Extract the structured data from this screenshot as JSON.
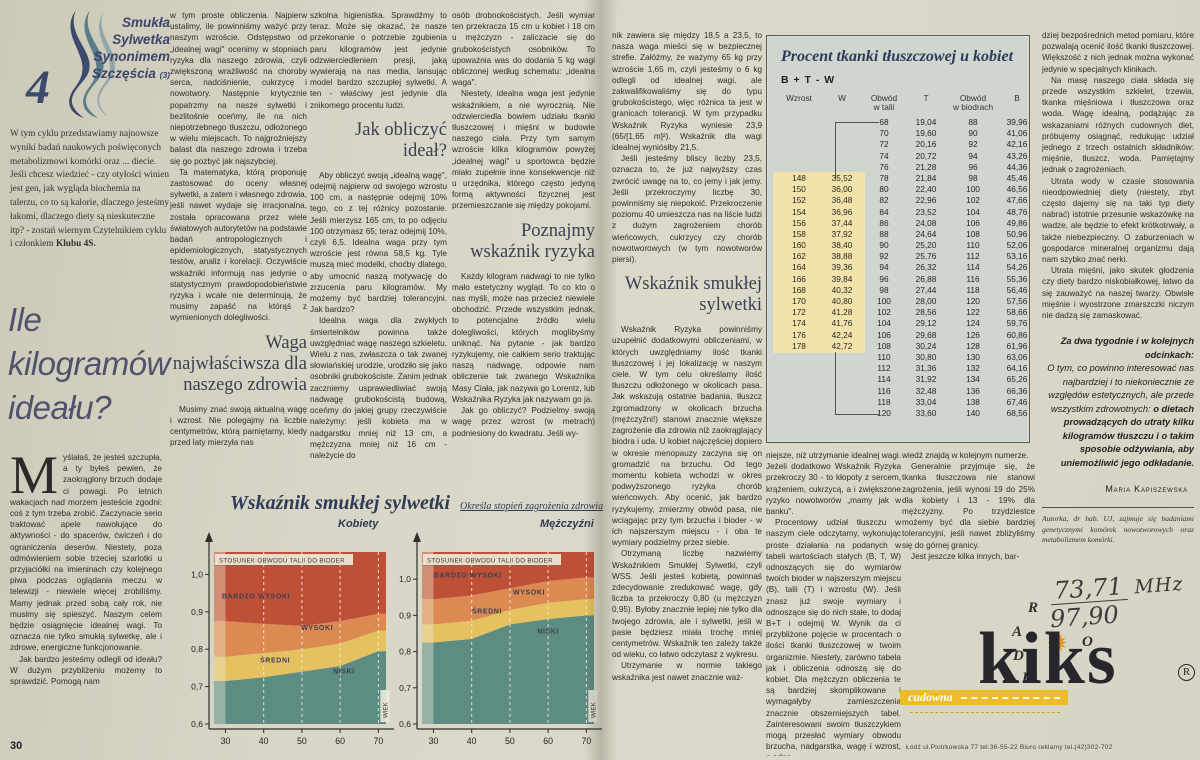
{
  "left_page": {
    "badge": {
      "number": "4",
      "lines": [
        "Smukła",
        "Sylwetka",
        "Synonimem",
        "Szczęścia"
      ],
      "part": "(3)"
    },
    "intro_text": "W tym cyklu przedstawiamy najnowsze wyniki badań naukowych poświęconych metabolizmowi komórki oraz ... diecie. Jeśli chcesz wiedzieć - czy otyłości winien jest gen, jak wygląda biochemia na talerzu, co to są kalorie, dlaczego jesteśmy łakomi, dlaczego diety są nieskuteczne itp? - zostań wiernym Czytelnikiem cyklu i członkiem ",
    "intro_bold": "Klubu 4S.",
    "title": "Ile kilogramów ideału?",
    "page_number": "30",
    "col1": {
      "dropcap": "M",
      "p1": "yślałaś, że jesteś szczupła, a ty byłeś pewien, że zaokrąglony brzuch dodaje ci powagi. Po letnich wakacjach nad morzem jesteście zgodni: coś z tym trzeba zrobić. Zaczynacie serio traktować apele nawołujące do aktywności - do spacerów, ćwiczeń i do ograniczenia deserów. Niestety, poza odmówieniem sobie trzeciej szarlotki u przyjaciółki na imieninach czy kolejnego piwa podczas oglądania meczu w telewizji - niewiele więcej zrobiliśmy. Mamy jednak przed sobą cały rok, nie musimy się spieszyć. Naszym celem będzie osiągnięcie idealnej wagi. To oznacza nie tylko smukłą sylwetkę, ale i zdrowe, energiczne funkcjonowanie.",
      "p2": "Jak bardzo jesteśmy odlegli od ideału? W dużym przybliżeniu możemy to sprawdzić. Pomogą nam"
    },
    "col2": {
      "p1": "w tym proste obliczenia. Najpierw ustalimy, ile powinniśmy ważyć przy naszym wzroście. Odstępstwo od „idealnej wagi\" ocenimy w stopniach ryzyka dla naszego zdrowia, czyli zwiększoną wrażliwość na choroby serca, nadciśnienie, cukrzycę i nowotwory. Następnie krytycznie popatrzmy na nasze sylwetki i bezlitośnie oceńmy, ile na nich niepotrzebnego tłuszczu, odłożonego w wielu miejscach. To najgroźniejszy balast dla naszego zdrowia i trzeba się go pozbyć jak najszybciej.",
      "p2": "Ta matematyka, którą proponuję zastosować do oceny własnej sylwetki, a zatem i własnego zdrowia, jeśli nawet wydaje się irracjonalna, została opracowana przez wiele światowych autorytetów na podstawie badań antropologicznych i epidemiologicznych, statystycznych testów, analiz i korelacji. Oczywiście wskaźniki informują nas jedynie o statystycznym prawdopodobieństwie ryzyka i wcale nie determinują, że musimy zapaść na którąś z wymienionych dolegliwości.",
      "subhead": "Waga najwłaściwsza dla naszego zdrowia",
      "p3": "Musimy znać swoją aktualną wagę i wzrost. Nie polegajmy na liczbie centymetrów, którą pamiętamy, kiedy przed laty mierzyła nas"
    },
    "col3": {
      "p1": "szkolna higienistka. Sprawdźmy to teraz. Może się okazać, że nasze przekonanie o potrzebie zgubienia paru kilogramów jest jedynie odzwierciedleniem presji, jaką wywierają na nas media, lansując model bardzo szczupłej sylwetki. A ten - właściwy jest jedynie dla znikomego procentu ludzi.",
      "subhead": "Jak obliczyć ideał?",
      "p2": "Aby obliczyć swoją „idealną wagę\", odejmij najpierw od swojego wzrostu 100 cm, a następnie odejmij 10% tego, co z tej różnicy pozostanie. Jeśli mierzysz 165 cm, to po odjęciu 100 otrzymasz 65; teraz odejmij 10%, czyli 6,5. Idealna waga przy tym wzroście jest równa 58,5 kg. Tyle muszą mieć modelki, choćby dlatego, aby umocnić naszą motywację do zrzucenia paru kilogramów. My możemy być bardziej tolerancyjni. Jak bardzo?",
      "p3": "Idealna waga dla zwykłych śmiertelników powinna także uwzględniać wagę naszego szkieletu. Wielu z nas, zwłaszcza o tak zwanej słowiańskiej urodzie, urodziło się jako osobniki grubokościste. Zanim jednak zaczniemy usprawiedliwiać swoją nadwagę grubokościstą budową, oceńmy do jakiej grupy rzeczywiście należymy: jeśli kobieta ma w nadgarstku mniej niż 13 cm, a mężczyzna mniej niż 16 cm - należycie do"
    },
    "col4": {
      "p1": "osób drobnokościstych. Jeśli wymiar ten przekracza 15 cm u kobiet i 18 cm u mężczyzn - zaliczacie się do grubokościstych osobników. To upoważnia was do dodania 5 kg wagi obliczonej według schematu: „idealna waga\".",
      "p2": "Niestety, idealna waga jest jedynie wskaźnikiem, a nie wyrocznią. Nie odzwierciedla bowiem udziału tkanki tłuszczowej i mięśni w budowie naszego ciała. Przy tym samym wzroście kilka kilogramów powyżej „idealnej wagi\" u sportowca będzie miało zupełnie inne konsekwencje niż u urzędnika, którego często jedyną formą aktywności fizycznej jest przemieszczanie się między pokojami.",
      "subhead": "Poznajmy wskaźnik ryzyka",
      "p3": "Każdy kilogram nadwagi to nie tylko mało estetyczny wygląd. To co kto o nas myśli, może nas przecież niewiele obchodzić. Przede wszystkim jednak, to potencjalne źródło wielu dolegliwości, których moglibyśmy uniknąć. Na pytanie - jak bardzo ryzykujemy, nie całkiem serio traktując naszą nadwagę, odpowie nam obliczenie tak zwanego Wskaźnika Masy Ciała, jak nazywa go Lorentz, lub Wskaźnika Ryzyka jak nazywam go ja.",
      "p4": "Jak go obliczyć? Podzielmy swoją wagę przez wzrost (w metrach) podniesiony do kwadratu. Jeśli wy-"
    }
  },
  "chart_data": {
    "type": "area",
    "title": "Wskaźnik smukłej sylwetki",
    "subtitle": "Określa stopień zagrożenia zdrowia",
    "inner_label": "STOSUNEK OBWODU TALII DO BIODER",
    "xlabel": "WIEK",
    "x": [
      30,
      40,
      50,
      60,
      70
    ],
    "xticks": [
      "30",
      "40",
      "50",
      "60",
      "70"
    ],
    "yticks": [
      1.0,
      0.9,
      0.8,
      0.7,
      0.6
    ],
    "ytick_labels": [
      "1,0",
      "0,9",
      "0,8",
      "0,7",
      "0,6"
    ],
    "ylim": [
      0.6,
      1.05
    ],
    "colors": {
      "niski": "#5d8c82",
      "sredni": "#e5c15f",
      "wysoki": "#dc8a52",
      "bardzo_wysoki": "#bf5038"
    },
    "band_names": [
      "NISKI",
      "ŚREDNI",
      "WYSOKI",
      "BARDZO WYSOKI"
    ],
    "panels": [
      {
        "name": "Kobiety",
        "ytop": 1.06,
        "niski_top": [
          0.715,
          0.725,
          0.74,
          0.755,
          0.795
        ],
        "sredni_top": [
          0.78,
          0.79,
          0.8,
          0.815,
          0.85
        ],
        "wysoki_top": [
          0.875,
          0.868,
          0.862,
          0.875,
          0.895
        ],
        "labels": [
          {
            "text": "BARDZO WYSOKI",
            "x": 38,
            "y": 0.935
          },
          {
            "text": "WYSOKI",
            "x": 54,
            "y": 0.852
          },
          {
            "text": "ŚREDNI",
            "x": 43,
            "y": 0.765
          },
          {
            "text": "NISKI",
            "x": 61,
            "y": 0.735
          }
        ]
      },
      {
        "name": "Mężczyźni",
        "ytop": 1.075,
        "niski_top": [
          0.825,
          0.835,
          0.875,
          0.89,
          0.9
        ],
        "sredni_top": [
          0.875,
          0.885,
          0.915,
          0.935,
          0.945
        ],
        "wysoki_top": [
          0.945,
          0.955,
          0.975,
          0.995,
          1.005
        ],
        "labels": [
          {
            "text": "BARDZO WYSOKI",
            "x": 39,
            "y": 1.005
          },
          {
            "text": "WYSOKI",
            "x": 55,
            "y": 0.958
          },
          {
            "text": "ŚREDNI",
            "x": 44,
            "y": 0.905
          },
          {
            "text": "NISKI",
            "x": 60,
            "y": 0.85
          }
        ]
      }
    ]
  },
  "right_page": {
    "colE": {
      "p1": "nik zawiera się między 18,5 a 23,5, to nasza waga mieści się w bezpiecznej strefie. Załóżmy, że ważymy 65 kg przy wzroście 1,65 m, czyli jesteśmy o 6 kg odlegli od idealnej wagi, ale zakwalifikowaliśmy się do typu grubokościstego, więc różnica ta jest w granicach tolerancji. W tym przypadku Wskaźnik Ryzyka wyniesie 23,9 (65/[1,65 m]²). Wskaźnik dla wagi idealnej wyniósłby 21,5.",
      "p2": "Jeśli jesteśmy bliscy liczby 23,5, oznacza to, że już najwyższy czas zwrócić uwagę na to, co jemy i jak jemy. Jeśli przekroczymy liczbę 30, powinniśmy się niepokoić. Przekroczenie poziomu 40 umieszcza nas na liście ludzi z dużym zagrożeniem chorób wieńcowych, cukrzycy czy chorób nowotworowych (w tym nowotworów piersi).",
      "subhead": "Wskaźnik smukłej sylwetki",
      "p3": "Wskaźnik Ryzyka powinniśmy uzupełnić dodatkowymi obliczeniami, w których uwzględniamy ilość tkanki tłuszczowej i jej lokalizację w naszym ciele. W tym celu określamy ilość tłuszczu odłożonego w okolicach pasa. Jak wskazują ostatnie badania, tłuszcz zgromadzony w okolicach brzucha (mężczyźni!) stanowi znacznie większe zagrożenie dla zdrowia niż zaokrąglający biodra i uda. U kobiet najczęściej dopiero w okresie menopauzy zaczyna się on gromadzić na brzuchu. Od tego momentu kobieta wchodzi w okres podwyższonego ryzyka chorób wieńcowych. Aby ocenić, jak bardzo ryzykujemy, zmierzmy obwód pasa, nie wciągając przy tym brzucha i bioder - w ich najszerszym miejscu - i oba te wymiary podzielmy przez siebie.",
      "p4": "Otrzymaną liczbę nazwiemy Wskaźnikiem Smukłej Sylwetki, czyli WSS. Jeśli jesteś kobietą, powinnaś zdecydowanie zredukować wagę, gdy liczba ta przekroczy 0,80 (u mężczyzn 0,95). Byłoby znacznie lepiej nie tylko dla twojego zdrowia, ale i sylwetki, jeśli w pasie będziesz miała trochę mniej centymetrów. Wskaźnik ten zależy także od wieku, co łatwo odczytasz z wykresu.",
      "p5": "Utrzymanie w normie takiego wskaźnika jest nawet znacznie waż-"
    },
    "table": {
      "title": "Procent tkanki tłuszczowej u kobiet",
      "formula": "B + T - W",
      "col_headers": [
        "Wzrost",
        "W",
        "Obwód\nw talii",
        "T",
        "Obwód\nw biodrach",
        "B"
      ],
      "rows": [
        [
          "",
          "",
          "68",
          "19,04",
          "88",
          "39,96"
        ],
        [
          "",
          "",
          "70",
          "19,60",
          "90",
          "41,06"
        ],
        [
          "",
          "",
          "72",
          "20,16",
          "92",
          "42,16"
        ],
        [
          "",
          "",
          "74",
          "20,72",
          "94",
          "43,26"
        ],
        [
          "",
          "",
          "76",
          "21,28",
          "96",
          "44,36"
        ],
        [
          "148",
          "35,52",
          "78",
          "21,84",
          "98",
          "45,46"
        ],
        [
          "150",
          "36,00",
          "80",
          "22,40",
          "100",
          "46,56"
        ],
        [
          "152",
          "36,48",
          "82",
          "22,96",
          "102",
          "47,66"
        ],
        [
          "154",
          "36,96",
          "84",
          "23,52",
          "104",
          "48,76"
        ],
        [
          "156",
          "37,44",
          "86",
          "24,08",
          "106",
          "49,86"
        ],
        [
          "158",
          "37,92",
          "88",
          "24,64",
          "108",
          "50,96"
        ],
        [
          "160",
          "38,40",
          "90",
          "25,20",
          "110",
          "52,06"
        ],
        [
          "162",
          "38,88",
          "92",
          "25,76",
          "112",
          "53,16"
        ],
        [
          "164",
          "39,36",
          "94",
          "26,32",
          "114",
          "54,26"
        ],
        [
          "166",
          "39,84",
          "96",
          "26,88",
          "116",
          "55,36"
        ],
        [
          "168",
          "40,32",
          "98",
          "27,44",
          "118",
          "56,46"
        ],
        [
          "170",
          "40,80",
          "100",
          "28,00",
          "120",
          "57,56"
        ],
        [
          "172",
          "41,28",
          "102",
          "28,56",
          "122",
          "58,66"
        ],
        [
          "174",
          "41,76",
          "104",
          "29,12",
          "124",
          "59,76"
        ],
        [
          "176",
          "42,24",
          "106",
          "29,68",
          "126",
          "60,86"
        ],
        [
          "178",
          "42,72",
          "108",
          "30,24",
          "128",
          "61,96"
        ],
        [
          "",
          "",
          "110",
          "30,80",
          "130",
          "63,06"
        ],
        [
          "",
          "",
          "112",
          "31,36",
          "132",
          "64,16"
        ],
        [
          "",
          "",
          "114",
          "31,92",
          "134",
          "65,26"
        ],
        [
          "",
          "",
          "116",
          "32,48",
          "136",
          "66,36"
        ],
        [
          "",
          "",
          "118",
          "33,04",
          "138",
          "67,46"
        ],
        [
          "",
          "",
          "120",
          "33,60",
          "140",
          "68,56"
        ]
      ]
    },
    "colF": {
      "p1": "niejsze, niż utrzymanie idealnej wagi. Jeżeli dodatkowo Wskaźnik Ryzyka przekroczy 30 - to kłopoty z sercem, krążeniem, cukrzycą, a i zwiększone ryzyko nowotworów „mamy jak w banku\".",
      "p2": "Procentowy udział tłuszczu w naszym ciele odczytamy, wykonując proste działania na podanych w tabeli wartościach stałych (B, T, W) odnoszących się do wymiarów twoich bioder w najszerszym miejscu (B), talii (T) i wzrostu (W). Jeśli znasz już swoje wymiary i odnoszące się do nich stałe, to dodaj B+T i odejmij W. Wynik da ci przybliżone pojęcie w procentach o ilości tkanki tłuszczowej w twoim organizmie. Niestety, zarówno tabela jak i obliczenia odnoszą się do kobiet. Dla mężczyzn obliczenia te są bardziej skomplikowane i wymagałyby zamieszczenia znacznie obszerniejszych tabel. Zainteresowani swoim tłuszczykiem mogą przesłać wymiary obwodu brzucha, nadgarstka, wagę i wzrost, a odpo-"
    },
    "colG": {
      "p1": "wiedź znajdą w kolejnym numerze.",
      "p2": "Generalnie przyjmuje się, że tkanka tłuszczowa nie stanowi zagrożenia, jeśli wynosi 19 do 25% dla kobiety i 13 - 19% dla mężczyzny. Po trzydziestce możemy być dla siebie bardziej tolerancyjni, jeśli nawet zbliżyliśmy się do górnej granicy.",
      "p3": "Jest jeszcze kilka innych, bar-"
    },
    "colH": {
      "p1": "dziej bezpośrednich metod pomiaru, które pozwalają ocenić ilość tkanki tłuszczowej. Większość z nich jednak można wykonać jedynie w specjalnych klinikach.",
      "p2": "Na masę naszego ciała składa się przede wszystkim szkielet, trzewia, tkanka mięśniowa i tłuszczowa oraz woda. Wagę idealną, podążając za wskazaniami różnych cudownych diet, próbujemy osiągnąć, redukując udział jednego z trzech ostatnich składników: mięśnie, tłuszcz, woda. Pamiętajmy jednak o zagrożeniach.",
      "p3": "Utrata wody w czasie stosowania nieodpowiedniej diety (niestety, zbyt często dajemy się na taki typ diety nabrać) istotnie przesunie wskazówkę na wadze, ale będzie to efekt krótkotrwały, a także niebezpieczny. O zaburzeniach w gospodarce mineralnej organizmu dają nam szybko znać nerki.",
      "p4": "Utrata mięśni, jako skutek głodzenia czy diety bardzo niskobiałkowej, łatwo da się zauważyć na naszej twarzy. Obwisłe mięśnie i wyostrzone zmarszczki niczym nie dadzą się zamaskować.",
      "teaser_head": "Za dwa tygodnie i w kolejnych odcinkach:",
      "teaser_body": "O tym, co powinno interesować nas najbardziej i to niekoniecznie ze względów estetycznych, ale przede wszystkim zdrowotnych:",
      "teaser_bold": "o dietach prowadzących do utraty kilku kilogramów tłuszczu i o takim sposobie odżywiania, aby uniemożliwić jego odkładanie.",
      "author": "Maria Kapiszewska",
      "note": "Autorka, dr hab. UJ, zajmuje się badaniami genetycznymi komórek nowotworowych oraz metabolizmem komórki."
    },
    "ad": {
      "freq1": "73,71",
      "freq2": "97,90",
      "unit": "MHz",
      "radio_letters": [
        "R",
        "A",
        "D",
        "I",
        "O"
      ],
      "brand": "kiks",
      "reg": "R",
      "strip_text": "cudowna",
      "address": "Łódź ul.Piotrkowska 77 tel.36-55-22   Biuro reklamy tel.(42)302-702"
    }
  }
}
